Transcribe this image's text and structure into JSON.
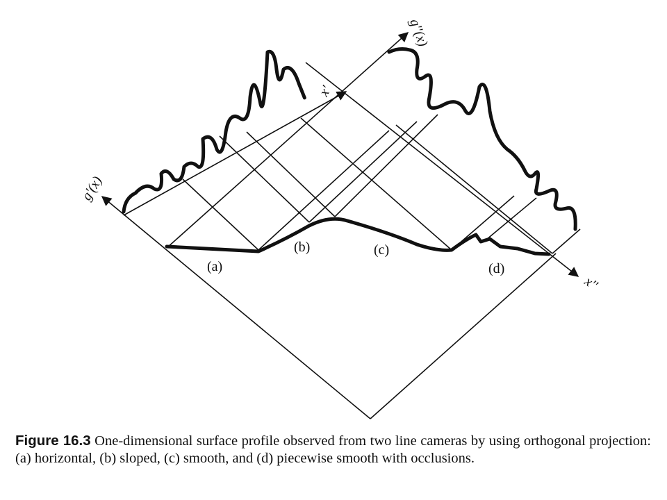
{
  "figure": {
    "axis_labels": {
      "g1": "g'(x)",
      "g2": "g''(x)",
      "x1": "x'",
      "x2": "x''"
    },
    "region_labels": [
      "(a)",
      "(b)",
      "(c)",
      "(d)"
    ],
    "caption": {
      "label": "Figure 16.3",
      "text": "One-dimensional surface profile observed from two line cameras by using orthogonal projection: (a) horizontal, (b) sloped, (c) smooth, and (d) piecewise smooth with occlusions."
    }
  }
}
